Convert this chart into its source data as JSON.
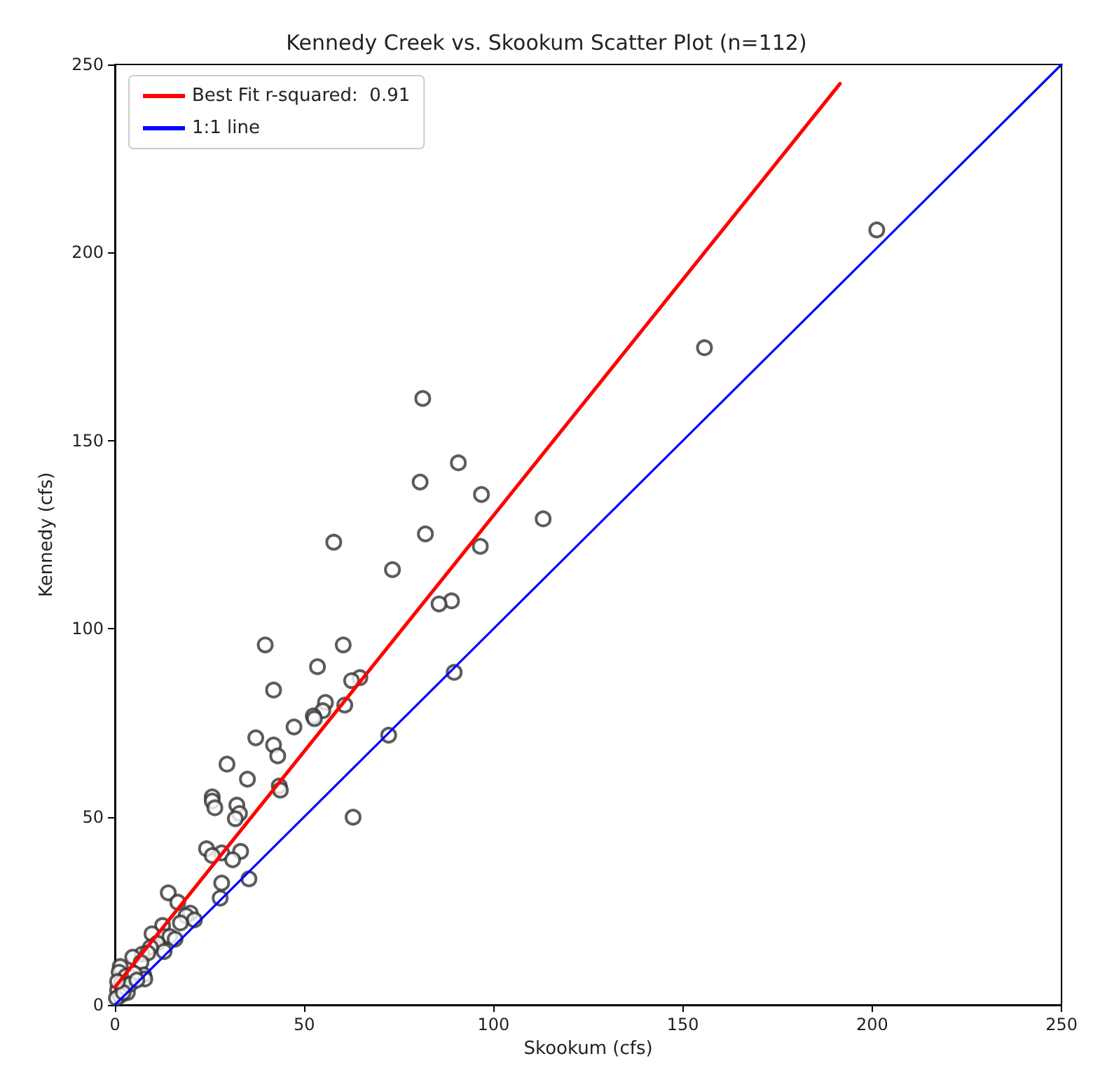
{
  "chart_data": {
    "type": "scatter",
    "title": "Kennedy Creek vs. Skookum Scatter Plot (n=112)",
    "xlabel": "Skookum (cfs)",
    "ylabel": "Kennedy (cfs)",
    "xlim": [
      0,
      250
    ],
    "ylim": [
      0,
      250
    ],
    "xticks": [
      0,
      50,
      100,
      150,
      200,
      250
    ],
    "yticks": [
      0,
      50,
      100,
      150,
      200,
      250
    ],
    "grid": false,
    "legend": "top left",
    "series": [
      {
        "type": "scatter",
        "color": "#333333",
        "marker": "circle",
        "x": [
          201.2,
          155.7,
          81.3,
          90.7,
          80.6,
          96.8,
          113.1,
          82,
          57.8,
          96.5,
          73.3,
          88.9,
          85.6,
          39.7,
          60.3,
          53.5,
          89.6,
          41.9,
          64.7,
          62.5,
          55.6,
          60.7,
          54.9,
          52.4,
          52.7,
          47.3,
          37.2,
          41.9,
          72.3,
          43,
          29.6,
          35,
          43.4,
          43.7,
          62.9,
          25.7,
          25.7,
          32.2,
          26.4,
          32.9,
          31.8,
          24.2,
          28.2,
          33.2,
          25.7,
          31.1,
          35.4,
          28.2,
          27.8,
          14.1,
          16.6,
          19.9,
          18.8,
          21,
          17.3,
          12.6,
          9.8,
          13,
          14.5,
          15.9,
          11.2,
          13,
          9.4,
          7.2,
          8.7,
          4.7,
          6.9,
          7.6,
          7.9,
          1.4,
          1.1,
          2.9,
          4.3,
          5.1,
          1.8,
          2.5,
          0.7,
          3.3,
          1.4,
          0.4,
          4,
          5.8,
          2.2,
          0.7
        ],
        "values": [
          206,
          174.7,
          161.2,
          144.1,
          139,
          135.7,
          129.2,
          125.2,
          123,
          121.9,
          115.7,
          107.4,
          106.6,
          95.7,
          95.7,
          89.9,
          88.4,
          83.7,
          87,
          86.2,
          80.4,
          79.7,
          78.2,
          76.8,
          76.1,
          73.9,
          71,
          69.1,
          71.7,
          66.2,
          64,
          60,
          58.2,
          57.1,
          49.9,
          55.3,
          54.2,
          53.1,
          52.4,
          50.9,
          49.5,
          41.5,
          40.4,
          40.8,
          39.7,
          38.6,
          33.5,
          32.4,
          28.4,
          29.8,
          27.3,
          24.4,
          23.7,
          22.6,
          21.8,
          21.1,
          18.9,
          18.2,
          18.2,
          17.5,
          16.4,
          14.2,
          15.3,
          13.5,
          13.8,
          12.7,
          11.3,
          8,
          6.9,
          10.2,
          8.7,
          7.6,
          7.3,
          8.4,
          5.8,
          4.7,
          4,
          3.3,
          2.5,
          1.8,
          5.5,
          6.6,
          3.3,
          6.2
        ]
      },
      {
        "type": "line",
        "name": "Best Fit r-squared:  0.91",
        "color": "#ff0000",
        "marker": "none",
        "line_style": "solid",
        "x": [
          0,
          191.5
        ],
        "values": [
          4.7,
          244.9
        ]
      },
      {
        "type": "line",
        "name": "1:1 line",
        "color": "#0000ff",
        "marker": "none",
        "line_style": "solid",
        "x": [
          0,
          250
        ],
        "values": [
          0,
          250
        ]
      }
    ]
  }
}
